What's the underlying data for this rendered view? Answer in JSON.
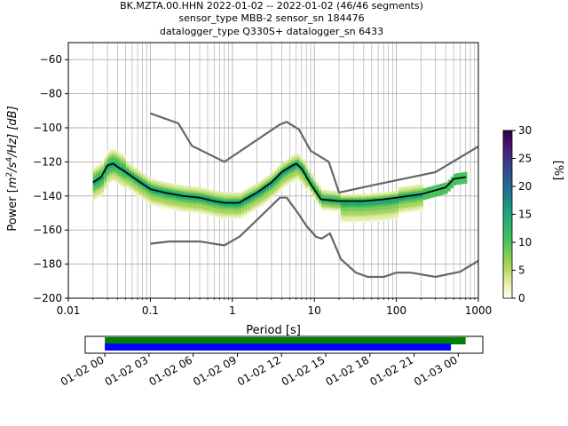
{
  "title": {
    "line1": "BK.MZTA.00.HHN   2022-01-02 -- 2022-01-02  (46/46 segments)",
    "line2": "sensor_type MBB-2 sensor_sn 184476",
    "line3": "datalogger_type Q330S+ datalogger_sn 6433"
  },
  "chart_data": [
    {
      "type": "heatmap",
      "subtype": "probabilistic-power-spectral-density",
      "xlabel": "Period [s]",
      "ylabel": "Power [m²/s⁴/Hz] [dB]",
      "ylabel_parts": {
        "pre": "Power [",
        "m": "m",
        "m_sup": "2",
        "slash1": "/s",
        "s_sup": "4",
        "rest": "/Hz] [dB]"
      },
      "x_scale": "log",
      "xlim": [
        0.01,
        1000
      ],
      "ylim": [
        -200,
        -50
      ],
      "grid": true,
      "xticks": [
        {
          "v": 0.01,
          "label": "0.01"
        },
        {
          "v": 0.1,
          "label": "0.1"
        },
        {
          "v": 1,
          "label": "1"
        },
        {
          "v": 10,
          "label": "10"
        },
        {
          "v": 100,
          "label": "100"
        },
        {
          "v": 1000,
          "label": "1000"
        }
      ],
      "yticks": [
        {
          "v": -60,
          "label": "−60"
        },
        {
          "v": -80,
          "label": "−80"
        },
        {
          "v": -100,
          "label": "−100"
        },
        {
          "v": -120,
          "label": "−120"
        },
        {
          "v": -140,
          "label": "−140"
        },
        {
          "v": -160,
          "label": "−160"
        },
        {
          "v": -180,
          "label": "−180"
        },
        {
          "v": -200,
          "label": "−200"
        }
      ],
      "noise_model_high": {
        "color": "#666666",
        "x": [
          0.1,
          0.22,
          0.32,
          0.8,
          3.8,
          4.6,
          6.5,
          9,
          15,
          20,
          60,
          300,
          1000
        ],
        "y": [
          -91.5,
          -97.4,
          -110.5,
          -120,
          -98,
          -96.5,
          -101,
          -113.5,
          -120,
          -138,
          -133,
          -126,
          -111
        ]
      },
      "noise_model_low": {
        "color": "#666666",
        "x": [
          0.1,
          0.17,
          0.4,
          0.8,
          1.24,
          3.8,
          4.6,
          6.3,
          8,
          10.5,
          12.3,
          15.5,
          21,
          32,
          45,
          70,
          100,
          150,
          300,
          600,
          1000
        ],
        "y": [
          -168,
          -166.7,
          -166.7,
          -169,
          -163.7,
          -141,
          -141,
          -150,
          -157.5,
          -164,
          -165,
          -162,
          -177,
          -185,
          -187.5,
          -187.5,
          -185,
          -185,
          -187.5,
          -184.5,
          -178
        ]
      },
      "mode_line": {
        "color": "#000000",
        "x": [
          0.02,
          0.025,
          0.03,
          0.035,
          0.04,
          0.05,
          0.07,
          0.1,
          0.15,
          0.25,
          0.4,
          0.6,
          0.8,
          1.2,
          2,
          3,
          4,
          5,
          6,
          7,
          9,
          12,
          20,
          40,
          70,
          100,
          200,
          400,
          500,
          700
        ],
        "y": [
          -132,
          -129,
          -122,
          -121,
          -123,
          -126,
          -131,
          -136,
          -138,
          -140,
          -141,
          -143,
          -144,
          -144,
          -138,
          -132,
          -126,
          -123,
          -121,
          -124,
          -133,
          -142,
          -143,
          -143,
          -142,
          -141,
          -139,
          -135,
          -130,
          -129
        ]
      },
      "colorbar": {
        "label": "[%]",
        "min": 0,
        "max": 30,
        "ticks": [
          {
            "v": 0,
            "label": "0"
          },
          {
            "v": 5,
            "label": "5"
          },
          {
            "v": 10,
            "label": "10"
          },
          {
            "v": 15,
            "label": "15"
          },
          {
            "v": 20,
            "label": "20"
          },
          {
            "v": 25,
            "label": "25"
          },
          {
            "v": 30,
            "label": "30"
          }
        ],
        "colormap": "pqlx-like"
      }
    },
    {
      "type": "bar",
      "subtype": "data-coverage-timeline",
      "xlim": [
        "2022-01-01 22:40",
        "2022-01-03 01:40"
      ],
      "xticks": [
        {
          "t": "2022-01-02 00:00",
          "label": "01-02 00"
        },
        {
          "t": "2022-01-02 03:00",
          "label": "01-02 03"
        },
        {
          "t": "2022-01-02 06:00",
          "label": "01-02 06"
        },
        {
          "t": "2022-01-02 09:00",
          "label": "01-02 09"
        },
        {
          "t": "2022-01-02 12:00",
          "label": "01-02 12"
        },
        {
          "t": "2022-01-02 15:00",
          "label": "01-02 15"
        },
        {
          "t": "2022-01-02 18:00",
          "label": "01-02 18"
        },
        {
          "t": "2022-01-02 21:00",
          "label": "01-02 21"
        },
        {
          "t": "2022-01-03 00:00",
          "label": "01-03 00"
        }
      ],
      "bars": [
        {
          "color": "#008000",
          "start": "2022-01-02 00:00",
          "end": "2022-01-03 00:30"
        },
        {
          "color": "#0000ff",
          "start": "2022-01-02 00:00",
          "end": "2022-01-02 23:30"
        }
      ]
    }
  ]
}
